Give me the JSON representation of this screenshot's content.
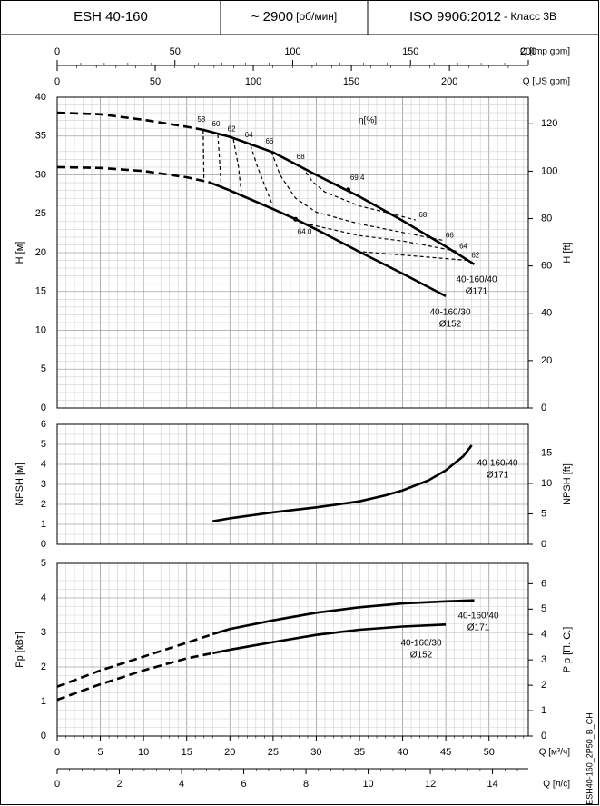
{
  "header": {
    "model": "ESH 40-160",
    "speed": "~ 2900",
    "speed_unit": "[об/мин]",
    "standard": "ISO 9906:2012",
    "grade": "- Класс 3B"
  },
  "footer_code": "ESH40-160_2P50_B_CH",
  "chart_data": [
    {
      "type": "line",
      "ylabel": "H [м]",
      "y2label": "H [ft]",
      "xlim": [
        0,
        54.55
      ],
      "ylim": [
        0,
        40
      ],
      "yticks": [
        0,
        5,
        10,
        15,
        20,
        25,
        30,
        35,
        40
      ],
      "y2lim": [
        0,
        131.23
      ],
      "y2ticks": [
        0,
        20,
        40,
        60,
        80,
        100,
        120
      ],
      "grid": true,
      "x_axes": [
        {
          "label": "Q [Imp gpm]",
          "xlim": [
            0,
            200
          ],
          "xticks": [
            0,
            50,
            100,
            150,
            200
          ]
        },
        {
          "label": "Q [US gpm]",
          "xlim": [
            0,
            240.2
          ],
          "xticks": [
            0,
            50,
            100,
            150,
            200
          ]
        }
      ],
      "series": [
        {
          "color": "#000000",
          "dash": true,
          "x": [
            0,
            5,
            10,
            15,
            16.9
          ],
          "values": [
            38,
            37.8,
            37.1,
            36.2,
            35.8
          ]
        },
        {
          "color": "#000000",
          "dash": false,
          "x": [
            16.9,
            20,
            25,
            30,
            35,
            40,
            45,
            48.3
          ],
          "values": [
            35.8,
            34.9,
            32.9,
            30.0,
            27.2,
            24.1,
            20.8,
            18.5
          ]
        },
        {
          "color": "#000000",
          "dash": true,
          "x": [
            0,
            5,
            10,
            15,
            17.5
          ],
          "values": [
            31,
            30.9,
            30.5,
            29.7,
            29.1
          ]
        },
        {
          "color": "#000000",
          "dash": false,
          "x": [
            17.5,
            20,
            25,
            27.6,
            30,
            35,
            40,
            45
          ],
          "values": [
            29.1,
            28.0,
            25.6,
            24.3,
            23.0,
            20.1,
            17.3,
            14.4
          ]
        }
      ],
      "efficiency_curves": [
        {
          "name": "58",
          "x": [
            16.9,
            17.0
          ],
          "values": [
            35.8,
            29.1
          ]
        },
        {
          "name": "60",
          "x": [
            18.6,
            19.0
          ],
          "values": [
            35.2,
            28.5
          ]
        },
        {
          "name": "62",
          "x": [
            20.4,
            21.0,
            21.3,
            null,
            35.4,
            41,
            47.6
          ],
          "values": [
            34.6,
            31,
            27.8,
            null,
            20.1,
            19.6,
            19.0
          ]
        },
        {
          "name": "64",
          "x": [
            22.4,
            23.2,
            24.9,
            null,
            28.5,
            35,
            40,
            46.2
          ],
          "values": [
            33.8,
            31,
            26.2,
            null,
            23.8,
            22.2,
            21.5,
            20.2
          ]
        },
        {
          "name": "66",
          "x": [
            24.8,
            25.8,
            27.6,
            30,
            35,
            40,
            44.6
          ],
          "values": [
            33.0,
            30,
            27,
            25.2,
            23.7,
            22.6,
            21.6
          ]
        },
        {
          "name": "68",
          "x": [
            28.4,
            29.5,
            31,
            35,
            38,
            41.5
          ],
          "values": [
            31.0,
            29.2,
            27.8,
            26.0,
            25.2,
            24.2
          ]
        }
      ],
      "points": [
        {
          "label": "69.4",
          "x": 33.7,
          "value": 28.1
        },
        {
          "label": "64.0",
          "x": 27.6,
          "value": 24.3
        }
      ],
      "annotations": [
        "η[%]",
        "40-160/40",
        "Ø171",
        "40-160/30",
        "Ø152"
      ]
    },
    {
      "type": "line",
      "ylabel": "NPSH [м]",
      "y2label": "NPSH [ft]",
      "xlim": [
        0,
        54.55
      ],
      "ylim": [
        0,
        6
      ],
      "yticks": [
        0,
        1,
        2,
        3,
        4,
        5,
        6
      ],
      "y2lim": [
        0,
        19.69
      ],
      "y2ticks": [
        0,
        5,
        10,
        15
      ],
      "grid": true,
      "series": [
        {
          "color": "#000000",
          "dash": false,
          "x": [
            18,
            20,
            25,
            30,
            35,
            38,
            40,
            43,
            45,
            47,
            48
          ],
          "values": [
            1.15,
            1.3,
            1.6,
            1.85,
            2.15,
            2.45,
            2.7,
            3.2,
            3.7,
            4.4,
            4.95
          ]
        }
      ],
      "annotations": [
        "40-160/40",
        "Ø171"
      ]
    },
    {
      "type": "line",
      "ylabel": "Pp [кВт]",
      "y2label": "P p [П. С.]",
      "xlim": [
        0,
        54.55
      ],
      "ylim": [
        0,
        5
      ],
      "yticks": [
        0,
        1,
        2,
        3,
        4,
        5
      ],
      "y2lim": [
        0,
        6.8
      ],
      "y2ticks": [
        0,
        1,
        2,
        3,
        4,
        5,
        6
      ],
      "grid": true,
      "x_axes": [
        {
          "label": "Q [м³/ч]",
          "xlim": [
            0,
            54.55
          ],
          "xticks": [
            0,
            5,
            10,
            15,
            20,
            25,
            30,
            35,
            40,
            45,
            50
          ]
        },
        {
          "label": "Q [л/с]",
          "xlim": [
            0,
            15.15
          ],
          "xticks": [
            0,
            2,
            4,
            6,
            8,
            10,
            12,
            14
          ]
        }
      ],
      "series": [
        {
          "color": "#000000",
          "dash": true,
          "x": [
            0,
            5,
            10,
            15,
            18
          ],
          "values": [
            1.43,
            1.9,
            2.3,
            2.7,
            2.95
          ]
        },
        {
          "color": "#000000",
          "dash": false,
          "x": [
            18,
            20,
            25,
            30,
            35,
            40,
            45,
            48.3
          ],
          "values": [
            2.95,
            3.1,
            3.35,
            3.57,
            3.73,
            3.84,
            3.9,
            3.93
          ]
        },
        {
          "color": "#000000",
          "dash": true,
          "x": [
            0,
            5,
            10,
            15,
            18
          ],
          "values": [
            1.05,
            1.5,
            1.9,
            2.25,
            2.4
          ]
        },
        {
          "color": "#000000",
          "dash": false,
          "x": [
            18,
            20,
            25,
            30,
            35,
            40,
            45
          ],
          "values": [
            2.4,
            2.5,
            2.72,
            2.93,
            3.08,
            3.17,
            3.23
          ]
        }
      ],
      "annotations": [
        "40-160/40",
        "Ø171",
        "40-160/30",
        "Ø152"
      ]
    }
  ]
}
